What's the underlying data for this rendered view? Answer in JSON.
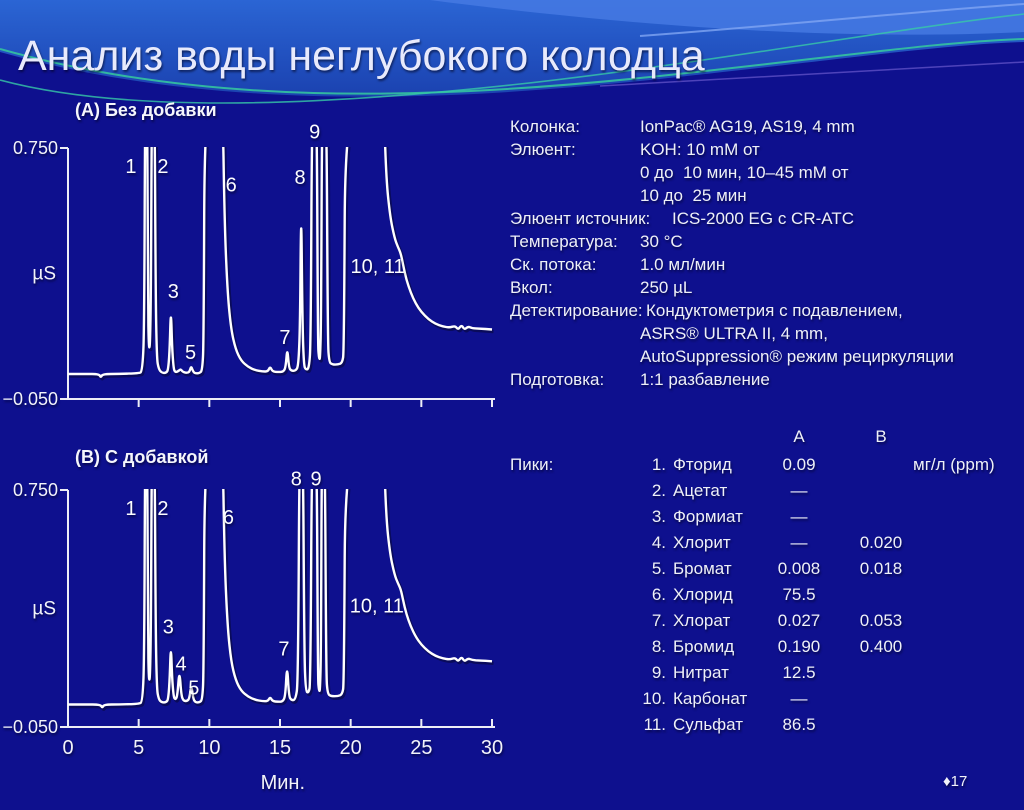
{
  "slide": {
    "title": "Анализ воды неглубокого колодца",
    "page_marker": "♦",
    "page_number": "17"
  },
  "colors": {
    "background": "#0e108e",
    "banner_top": "#2560cf",
    "banner_swath": "#477be4",
    "teal_accent": "#34c39e",
    "purple_accent": "#6a5acd",
    "trace": "#ffffff",
    "text": "#eef0f8"
  },
  "method": {
    "rows": [
      {
        "label": "Колонка:",
        "value": "IonPac® AG19, AS19, 4 mm"
      },
      {
        "label": "Элюент:",
        "value": "KOH: 10 mM от"
      },
      {
        "label": "",
        "value": "0 до  10 мин, 10–45 mM от"
      },
      {
        "label": "",
        "value": "10 до  25 мин"
      },
      {
        "label": "Элюент источник:",
        "value": "ICS-2000 EG с CR-ATC"
      },
      {
        "label": "Температура:",
        "value": "30 °C"
      },
      {
        "label": "Ск. потока:",
        "value": "1.0 мл/мин"
      },
      {
        "label": "Вкол:",
        "value": "250 µL"
      },
      {
        "label": "Детектирование:",
        "value": "Кондуктометрия с подавлением,"
      },
      {
        "label": "",
        "value": "ASRS® ULTRA II, 4 mm,"
      },
      {
        "label": "",
        "value": "AutoSuppression® режим рециркуляции"
      },
      {
        "label": "Подготовка:",
        "value": "1:1 разбавление"
      }
    ]
  },
  "peaks_table": {
    "section_label": "Пики:",
    "col_a": "A",
    "col_b": "B",
    "unit": "мг/л (ppm)",
    "rows": [
      {
        "num": "1.",
        "name": "Фторид",
        "a": "0.09",
        "b": ""
      },
      {
        "num": "2.",
        "name": "Ацетат",
        "a": "—",
        "b": ""
      },
      {
        "num": "3.",
        "name": "Формиат",
        "a": "—",
        "b": ""
      },
      {
        "num": "4.",
        "name": "Хлорит",
        "a": "—",
        "b": "0.020"
      },
      {
        "num": "5.",
        "name": "Бромат",
        "a": "0.008",
        "b": "0.018"
      },
      {
        "num": "6.",
        "name": "Хлорид",
        "a": "75.5",
        "b": ""
      },
      {
        "num": "7.",
        "name": "Хлорат",
        "a": "0.027",
        "b": "0.053"
      },
      {
        "num": "8.",
        "name": "Бромид",
        "a": "0.190",
        "b": "0.400"
      },
      {
        "num": "9.",
        "name": "Нитрат",
        "a": "12.5",
        "b": ""
      },
      {
        "num": "10.",
        "name": "Карбонат",
        "a": "—",
        "b": ""
      },
      {
        "num": "11.",
        "name": "Сульфат",
        "a": "86.5",
        "b": ""
      }
    ]
  },
  "chart_data": {
    "type": "line",
    "x_axis": {
      "range": [
        0,
        30
      ],
      "ticks": [
        0,
        5,
        10,
        15,
        20,
        25,
        30
      ],
      "label": "Мин."
    },
    "y_axis": {
      "range": [
        -0.05,
        0.75
      ],
      "top_label": "0.750",
      "bottom_label": "−0.050",
      "unit": "µS"
    },
    "note": "trace points are [minutes, µS]; values of 0.95 are off-scale (clipped at plot top)",
    "panels": [
      {
        "id": "A",
        "title": "(А) Без добавки",
        "x_ticks_labeled": false,
        "trace": [
          [
            0,
            0.03
          ],
          [
            1.2,
            0.03
          ],
          [
            2.2,
            0.03
          ],
          [
            2.32,
            0.018
          ],
          [
            2.45,
            0.03
          ],
          [
            3.6,
            0.03
          ],
          [
            5.0,
            0.032
          ],
          [
            5.28,
            0.038
          ],
          [
            5.4,
            0.2
          ],
          [
            5.46,
            0.95
          ],
          [
            5.6,
            0.95
          ],
          [
            5.66,
            0.25
          ],
          [
            5.72,
            0.115
          ],
          [
            5.8,
            0.115
          ],
          [
            5.87,
            0.3
          ],
          [
            5.93,
            0.95
          ],
          [
            6.12,
            0.95
          ],
          [
            6.2,
            0.3
          ],
          [
            6.28,
            0.08
          ],
          [
            6.42,
            0.046
          ],
          [
            6.62,
            0.034
          ],
          [
            6.95,
            0.033
          ],
          [
            7.1,
            0.045
          ],
          [
            7.2,
            0.12
          ],
          [
            7.28,
            0.24
          ],
          [
            7.36,
            0.12
          ],
          [
            7.47,
            0.046
          ],
          [
            7.6,
            0.035
          ],
          [
            7.85,
            0.04
          ],
          [
            7.97,
            0.046
          ],
          [
            8.12,
            0.036
          ],
          [
            8.5,
            0.033
          ],
          [
            8.62,
            0.04
          ],
          [
            8.72,
            0.055
          ],
          [
            8.83,
            0.04
          ],
          [
            8.97,
            0.032
          ],
          [
            9.3,
            0.032
          ],
          [
            9.5,
            0.042
          ],
          [
            9.6,
            0.13
          ],
          [
            9.68,
            0.95
          ],
          [
            10.92,
            0.95
          ],
          [
            11.08,
            0.5
          ],
          [
            11.3,
            0.28
          ],
          [
            11.55,
            0.17
          ],
          [
            11.85,
            0.11
          ],
          [
            12.25,
            0.072
          ],
          [
            12.75,
            0.052
          ],
          [
            13.25,
            0.042
          ],
          [
            13.75,
            0.038
          ],
          [
            14.15,
            0.038
          ],
          [
            14.3,
            0.054
          ],
          [
            14.47,
            0.038
          ],
          [
            14.85,
            0.036
          ],
          [
            15.25,
            0.037
          ],
          [
            15.4,
            0.052
          ],
          [
            15.52,
            0.115
          ],
          [
            15.63,
            0.052
          ],
          [
            15.78,
            0.04
          ],
          [
            16.1,
            0.04
          ],
          [
            16.3,
            0.055
          ],
          [
            16.42,
            0.18
          ],
          [
            16.5,
            0.6
          ],
          [
            16.59,
            0.18
          ],
          [
            16.69,
            0.058
          ],
          [
            16.82,
            0.044
          ],
          [
            17.05,
            0.046
          ],
          [
            17.18,
            0.13
          ],
          [
            17.27,
            0.95
          ],
          [
            17.6,
            0.95
          ],
          [
            17.68,
            0.13
          ],
          [
            17.76,
            0.078
          ],
          [
            17.84,
            0.078
          ],
          [
            17.91,
            0.2
          ],
          [
            17.98,
            0.95
          ],
          [
            18.28,
            0.95
          ],
          [
            18.38,
            0.13
          ],
          [
            18.48,
            0.068
          ],
          [
            18.7,
            0.06
          ],
          [
            19.1,
            0.06
          ],
          [
            19.4,
            0.065
          ],
          [
            19.53,
            0.1
          ],
          [
            19.63,
            0.95
          ],
          [
            22.32,
            0.95
          ],
          [
            22.5,
            0.66
          ],
          [
            22.8,
            0.53
          ],
          [
            23.1,
            0.465
          ],
          [
            23.35,
            0.435
          ],
          [
            23.55,
            0.415
          ],
          [
            23.7,
            0.38
          ],
          [
            23.95,
            0.33
          ],
          [
            24.25,
            0.29
          ],
          [
            24.6,
            0.255
          ],
          [
            25.0,
            0.228
          ],
          [
            25.5,
            0.205
          ],
          [
            26.0,
            0.19
          ],
          [
            26.5,
            0.182
          ],
          [
            27.0,
            0.178
          ],
          [
            27.4,
            0.184
          ],
          [
            27.6,
            0.171
          ],
          [
            27.85,
            0.187
          ],
          [
            28.05,
            0.171
          ],
          [
            28.3,
            0.182
          ],
          [
            28.6,
            0.176
          ],
          [
            29.1,
            0.175
          ],
          [
            30,
            0.172
          ]
        ],
        "peak_labels": [
          [
            "1",
            4.45,
            0.695
          ],
          [
            "2",
            6.72,
            0.695
          ],
          [
            "3",
            7.45,
            0.295
          ],
          [
            "5",
            8.67,
            0.1
          ],
          [
            "6",
            11.55,
            0.635
          ],
          [
            "7",
            15.35,
            0.148
          ],
          [
            "8",
            16.42,
            0.66
          ],
          [
            "9",
            17.45,
            0.805
          ],
          [
            "10, 11",
            21.9,
            0.375
          ]
        ]
      },
      {
        "id": "B",
        "title": "(В) С добавкой",
        "x_ticks_labeled": true,
        "trace": [
          [
            0,
            0.026
          ],
          [
            1.2,
            0.026
          ],
          [
            2.3,
            0.026
          ],
          [
            2.42,
            0.014
          ],
          [
            2.55,
            0.026
          ],
          [
            3.6,
            0.026
          ],
          [
            5.0,
            0.028
          ],
          [
            5.28,
            0.035
          ],
          [
            5.4,
            0.2
          ],
          [
            5.46,
            0.95
          ],
          [
            5.6,
            0.95
          ],
          [
            5.66,
            0.25
          ],
          [
            5.72,
            0.11
          ],
          [
            5.8,
            0.11
          ],
          [
            5.87,
            0.3
          ],
          [
            5.93,
            0.95
          ],
          [
            6.12,
            0.95
          ],
          [
            6.2,
            0.3
          ],
          [
            6.28,
            0.08
          ],
          [
            6.42,
            0.044
          ],
          [
            6.62,
            0.033
          ],
          [
            6.95,
            0.033
          ],
          [
            7.1,
            0.045
          ],
          [
            7.2,
            0.12
          ],
          [
            7.28,
            0.23
          ],
          [
            7.36,
            0.12
          ],
          [
            7.47,
            0.052
          ],
          [
            7.6,
            0.042
          ],
          [
            7.74,
            0.055
          ],
          [
            7.88,
            0.145
          ],
          [
            8.02,
            0.055
          ],
          [
            8.18,
            0.038
          ],
          [
            8.45,
            0.038
          ],
          [
            8.6,
            0.048
          ],
          [
            8.72,
            0.095
          ],
          [
            8.85,
            0.048
          ],
          [
            9.0,
            0.033
          ],
          [
            9.3,
            0.033
          ],
          [
            9.5,
            0.042
          ],
          [
            9.6,
            0.13
          ],
          [
            9.68,
            0.95
          ],
          [
            10.92,
            0.95
          ],
          [
            11.08,
            0.5
          ],
          [
            11.3,
            0.28
          ],
          [
            11.55,
            0.17
          ],
          [
            11.85,
            0.11
          ],
          [
            12.25,
            0.072
          ],
          [
            12.75,
            0.052
          ],
          [
            13.25,
            0.042
          ],
          [
            13.75,
            0.037
          ],
          [
            14.15,
            0.037
          ],
          [
            14.3,
            0.052
          ],
          [
            14.47,
            0.037
          ],
          [
            14.85,
            0.035
          ],
          [
            15.2,
            0.036
          ],
          [
            15.38,
            0.055
          ],
          [
            15.5,
            0.165
          ],
          [
            15.63,
            0.055
          ],
          [
            15.8,
            0.04
          ],
          [
            16.1,
            0.042
          ],
          [
            16.28,
            0.1
          ],
          [
            16.38,
            0.95
          ],
          [
            16.62,
            0.95
          ],
          [
            16.72,
            0.2
          ],
          [
            16.82,
            0.072
          ],
          [
            17.02,
            0.064
          ],
          [
            17.16,
            0.095
          ],
          [
            17.26,
            0.95
          ],
          [
            17.6,
            0.95
          ],
          [
            17.68,
            0.115
          ],
          [
            17.76,
            0.072
          ],
          [
            17.83,
            0.072
          ],
          [
            17.9,
            0.2
          ],
          [
            17.96,
            0.95
          ],
          [
            18.17,
            0.95
          ],
          [
            18.27,
            0.125
          ],
          [
            18.37,
            0.062
          ],
          [
            18.6,
            0.054
          ],
          [
            19.1,
            0.054
          ],
          [
            19.4,
            0.06
          ],
          [
            19.53,
            0.095
          ],
          [
            19.63,
            0.95
          ],
          [
            22.32,
            0.95
          ],
          [
            22.5,
            0.66
          ],
          [
            22.8,
            0.53
          ],
          [
            23.1,
            0.465
          ],
          [
            23.35,
            0.435
          ],
          [
            23.55,
            0.415
          ],
          [
            23.7,
            0.38
          ],
          [
            23.95,
            0.33
          ],
          [
            24.25,
            0.29
          ],
          [
            24.6,
            0.255
          ],
          [
            25.0,
            0.228
          ],
          [
            25.5,
            0.205
          ],
          [
            26.0,
            0.19
          ],
          [
            26.5,
            0.182
          ],
          [
            27.0,
            0.178
          ],
          [
            27.4,
            0.184
          ],
          [
            27.6,
            0.171
          ],
          [
            27.85,
            0.187
          ],
          [
            28.05,
            0.171
          ],
          [
            28.3,
            0.182
          ],
          [
            28.6,
            0.176
          ],
          [
            29.1,
            0.175
          ],
          [
            30,
            0.172
          ]
        ],
        "peak_labels": [
          [
            "1",
            4.45,
            0.69
          ],
          [
            "2",
            6.72,
            0.69
          ],
          [
            "3",
            7.1,
            0.29
          ],
          [
            "4",
            8.0,
            0.165
          ],
          [
            "5",
            8.9,
            0.083
          ],
          [
            "6",
            11.35,
            0.66
          ],
          [
            "7",
            15.28,
            0.215
          ],
          [
            "8",
            16.15,
            0.79
          ],
          [
            "9",
            17.55,
            0.79
          ],
          [
            "10, 11",
            21.85,
            0.36
          ]
        ]
      }
    ]
  }
}
